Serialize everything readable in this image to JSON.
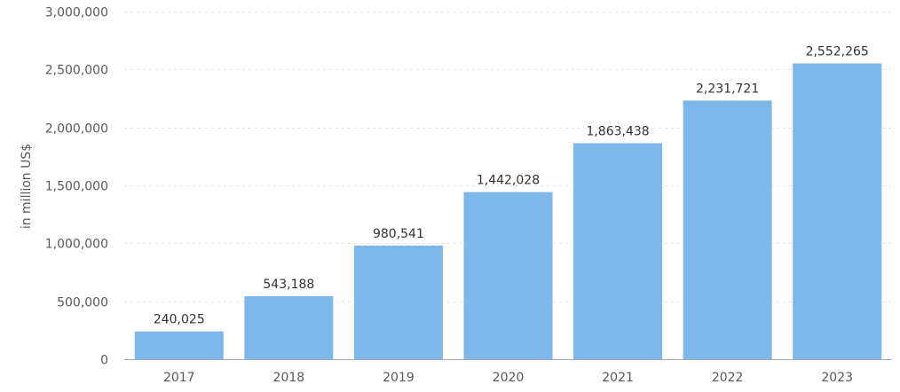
{
  "colors": {
    "bar": "#7cb9ea",
    "grid": "#e3e3e3",
    "axis": "#a9a9a9",
    "tick_text": "#595959",
    "label_text": "#333333"
  },
  "chart_data": {
    "type": "bar",
    "title": "",
    "xlabel": "",
    "ylabel": "in million US$",
    "categories": [
      "2017",
      "2018",
      "2019",
      "2020",
      "2021",
      "2022",
      "2023"
    ],
    "values": [
      240025,
      543188,
      980541,
      1442028,
      1863438,
      2231721,
      2552265
    ],
    "data_labels": [
      "240,025",
      "543,188",
      "980,541",
      "1,442,028",
      "1,863,438",
      "2,231,721",
      "2,552,265"
    ],
    "ylim": [
      0,
      3000000
    ],
    "yticks": [
      0,
      500000,
      1000000,
      1500000,
      2000000,
      2500000,
      3000000
    ],
    "ytick_labels": [
      "0",
      "500,000",
      "1,000,000",
      "1,500,000",
      "2,000,000",
      "2,500,000",
      "3,000,000"
    ],
    "grid": true,
    "legend": "none"
  }
}
